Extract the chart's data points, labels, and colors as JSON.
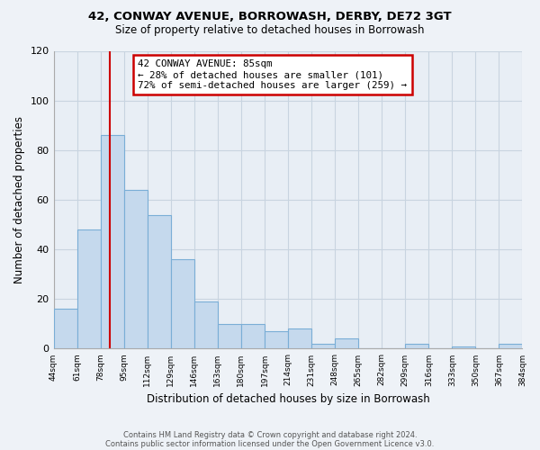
{
  "title": "42, CONWAY AVENUE, BORROWASH, DERBY, DE72 3GT",
  "subtitle": "Size of property relative to detached houses in Borrowash",
  "xlabel": "Distribution of detached houses by size in Borrowash",
  "ylabel": "Number of detached properties",
  "bar_color": "#c5d9ed",
  "bar_edge_color": "#7aaed6",
  "bins": [
    44,
    61,
    78,
    95,
    112,
    129,
    146,
    163,
    180,
    197,
    214,
    231,
    248,
    265,
    282,
    299,
    316,
    333,
    350,
    367,
    384
  ],
  "bin_labels": [
    "44sqm",
    "61sqm",
    "78sqm",
    "95sqm",
    "112sqm",
    "129sqm",
    "146sqm",
    "163sqm",
    "180sqm",
    "197sqm",
    "214sqm",
    "231sqm",
    "248sqm",
    "265sqm",
    "282sqm",
    "299sqm",
    "316sqm",
    "333sqm",
    "350sqm",
    "367sqm",
    "384sqm"
  ],
  "values": [
    16,
    48,
    86,
    64,
    54,
    36,
    19,
    10,
    10,
    7,
    8,
    2,
    4,
    0,
    0,
    2,
    0,
    1,
    0,
    2
  ],
  "ylim": [
    0,
    120
  ],
  "yticks": [
    0,
    20,
    40,
    60,
    80,
    100,
    120
  ],
  "property_line_x": 85,
  "annotation_title": "42 CONWAY AVENUE: 85sqm",
  "annotation_line1": "← 28% of detached houses are smaller (101)",
  "annotation_line2": "72% of semi-detached houses are larger (259) →",
  "footer_line1": "Contains HM Land Registry data © Crown copyright and database right 2024.",
  "footer_line2": "Contains public sector information licensed under the Open Government Licence v3.0.",
  "background_color": "#eef2f7",
  "plot_bg_color": "#e8eef5",
  "grid_color": "#c8d4e0",
  "annotation_box_color": "#ffffff",
  "annotation_box_edge_color": "#cc0000",
  "property_line_color": "#cc0000"
}
